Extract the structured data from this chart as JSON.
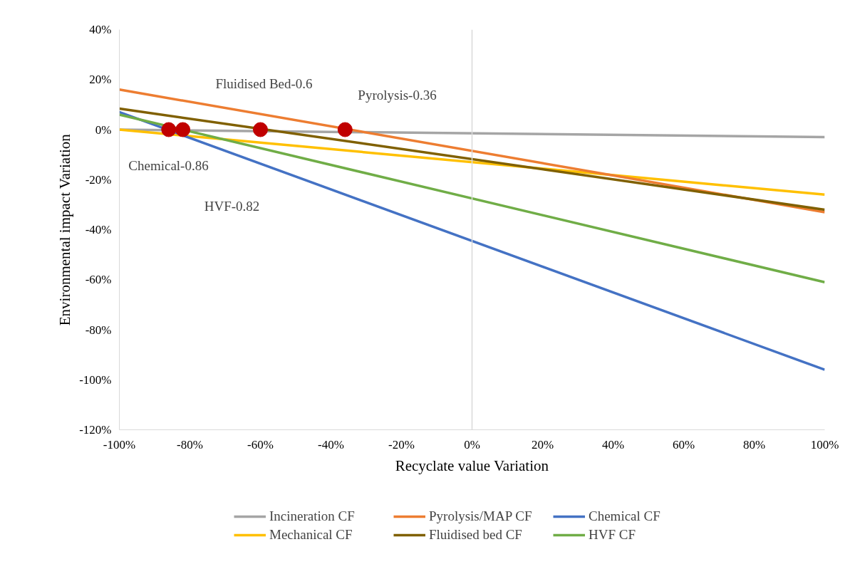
{
  "chart_data": {
    "type": "line",
    "xlabel": "Recyclate value Variation",
    "ylabel": "Environmental impact Variation",
    "x": [
      -100,
      100
    ],
    "series": [
      {
        "name": "Incineration CF",
        "color": "#a5a5a5",
        "values": [
          0,
          -3
        ]
      },
      {
        "name": "Mechanical CF",
        "color": "#ffc000",
        "values": [
          0,
          -26
        ]
      },
      {
        "name": "Pyrolysis/MAP CF",
        "color": "#ed7d31",
        "values": [
          16,
          -33
        ]
      },
      {
        "name": "Fluidised bed CF",
        "color": "#806000",
        "values": [
          8.4,
          -32
        ]
      },
      {
        "name": "Chemical CF",
        "color": "#4472c4",
        "values": [
          7,
          -96
        ]
      },
      {
        "name": "HVF CF",
        "color": "#70ad47",
        "values": [
          6,
          -61
        ]
      },
      {
        "type": "scatter",
        "color": "#c00000",
        "x": [
          -86,
          -82,
          -60,
          -36
        ],
        "values": [
          0,
          0,
          0,
          0
        ],
        "marker": "circle"
      }
    ],
    "annotations": [
      "Fluidised Bed-0.6",
      "Pyrolysis-0.36",
      "Chemical-0.86",
      "HVF-0.82"
    ],
    "ref_lines": [
      {
        "axis": "x",
        "value": 0,
        "color": "#d9d9d9"
      }
    ],
    "xlim": [
      -100,
      100
    ],
    "xticks": [
      {
        "value": -100,
        "label": "-100%"
      },
      {
        "value": -80,
        "label": "-80%"
      },
      {
        "value": -60,
        "label": "-60%"
      },
      {
        "value": -40,
        "label": "-40%"
      },
      {
        "value": -20,
        "label": "-20%"
      },
      {
        "value": 0,
        "label": "0%"
      },
      {
        "value": 20,
        "label": "20%"
      },
      {
        "value": 40,
        "label": "40%"
      },
      {
        "value": 60,
        "label": "60%"
      },
      {
        "value": 80,
        "label": "80%"
      },
      {
        "value": 100,
        "label": "100%"
      }
    ],
    "ylim": [
      -120,
      40
    ],
    "yticks": [
      {
        "value": -120,
        "label": "-120%"
      },
      {
        "value": -100,
        "label": "-100%"
      },
      {
        "value": -80,
        "label": "-80%"
      },
      {
        "value": -60,
        "label": "-60%"
      },
      {
        "value": -40,
        "label": "-40%"
      },
      {
        "value": -20,
        "label": "-20%"
      },
      {
        "value": 0,
        "label": "0%"
      },
      {
        "value": 20,
        "label": "20%"
      },
      {
        "value": 40,
        "label": "40%"
      }
    ],
    "grid": false,
    "legend": "bottom",
    "marker": "none",
    "line_style": "solid"
  }
}
